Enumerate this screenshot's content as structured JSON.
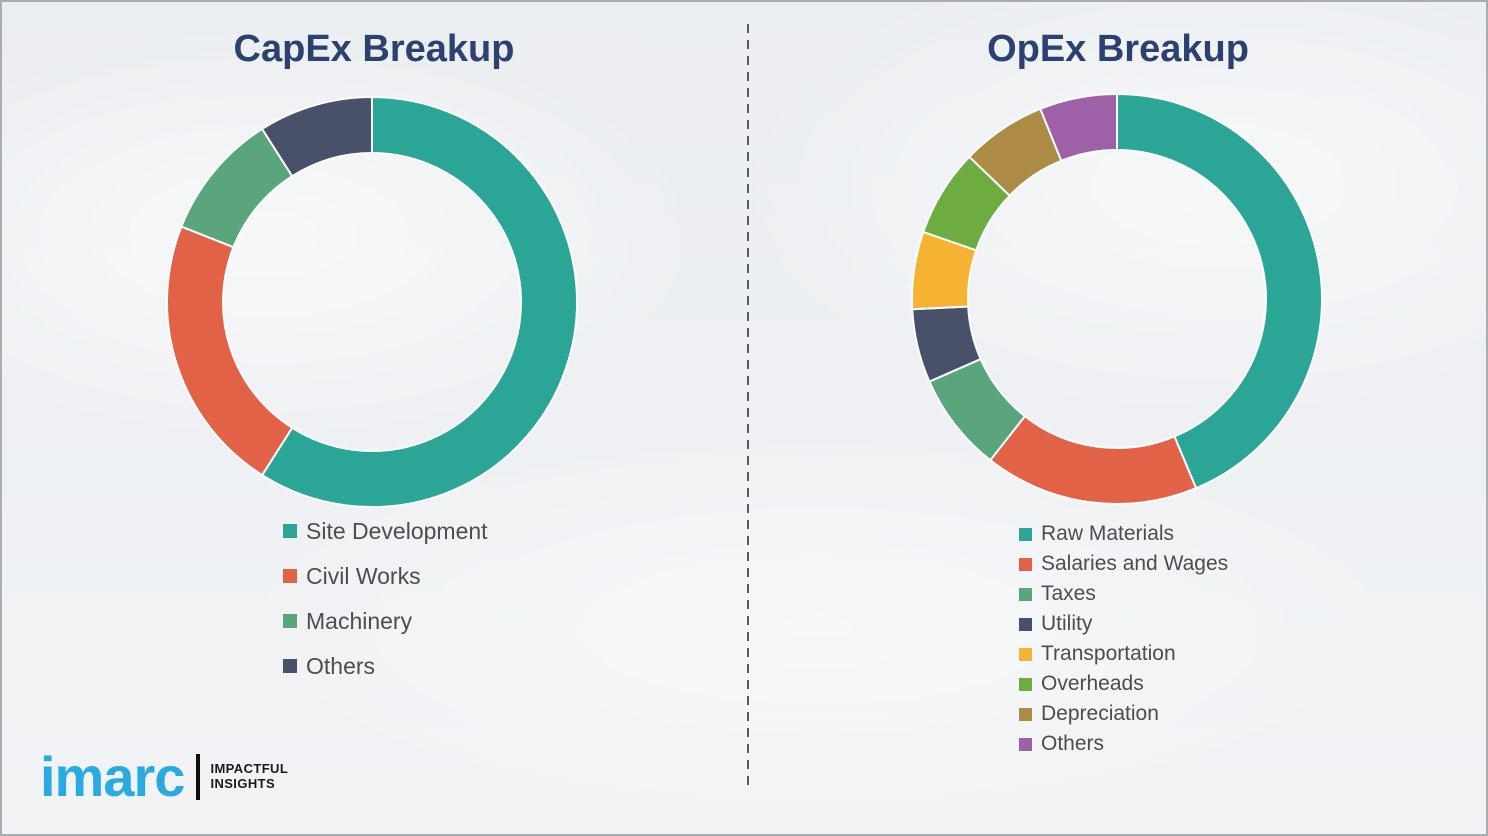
{
  "page": {
    "background_color": "#eff1f3",
    "border_color": "#a9acb2",
    "divider_color": "#5a5a5a",
    "title_color": "#2b4170",
    "legend_text_color": "#4d4d4d"
  },
  "chart_data": [
    {
      "id": "capex",
      "type": "pie",
      "subtype": "donut",
      "title": "CapEx Breakup",
      "labels": [
        "Site Development",
        "Civil Works",
        "Machinery",
        "Others"
      ],
      "values": [
        59,
        22,
        10,
        9
      ],
      "colors": [
        "#2ba596",
        "#e26247",
        "#5aa57c",
        "#485169"
      ],
      "start_angle_deg": 0,
      "direction": "clockwise",
      "legend_position": "below"
    },
    {
      "id": "opex",
      "type": "pie",
      "subtype": "donut",
      "title": "OpEx Breakup",
      "labels": [
        "Raw Materials",
        "Salaries and Wages",
        "Taxes",
        "Utility",
        "Transportation",
        "Overheads",
        "Depreciation",
        "Others"
      ],
      "values": [
        43.7,
        16.9,
        7.8,
        5.8,
        6.1,
        6.9,
        6.7,
        6.1
      ],
      "colors": [
        "#2ba596",
        "#e26247",
        "#5aa57c",
        "#485169",
        "#f6b331",
        "#6cac40",
        "#ac8b44",
        "#9e60a6"
      ],
      "start_angle_deg": 0,
      "direction": "clockwise",
      "legend_position": "below"
    }
  ],
  "branding": {
    "logo_text": "imarc",
    "tagline_line1": "IMPACTFUL",
    "tagline_line2": "INSIGHTS",
    "logo_color": "#29abe2"
  }
}
